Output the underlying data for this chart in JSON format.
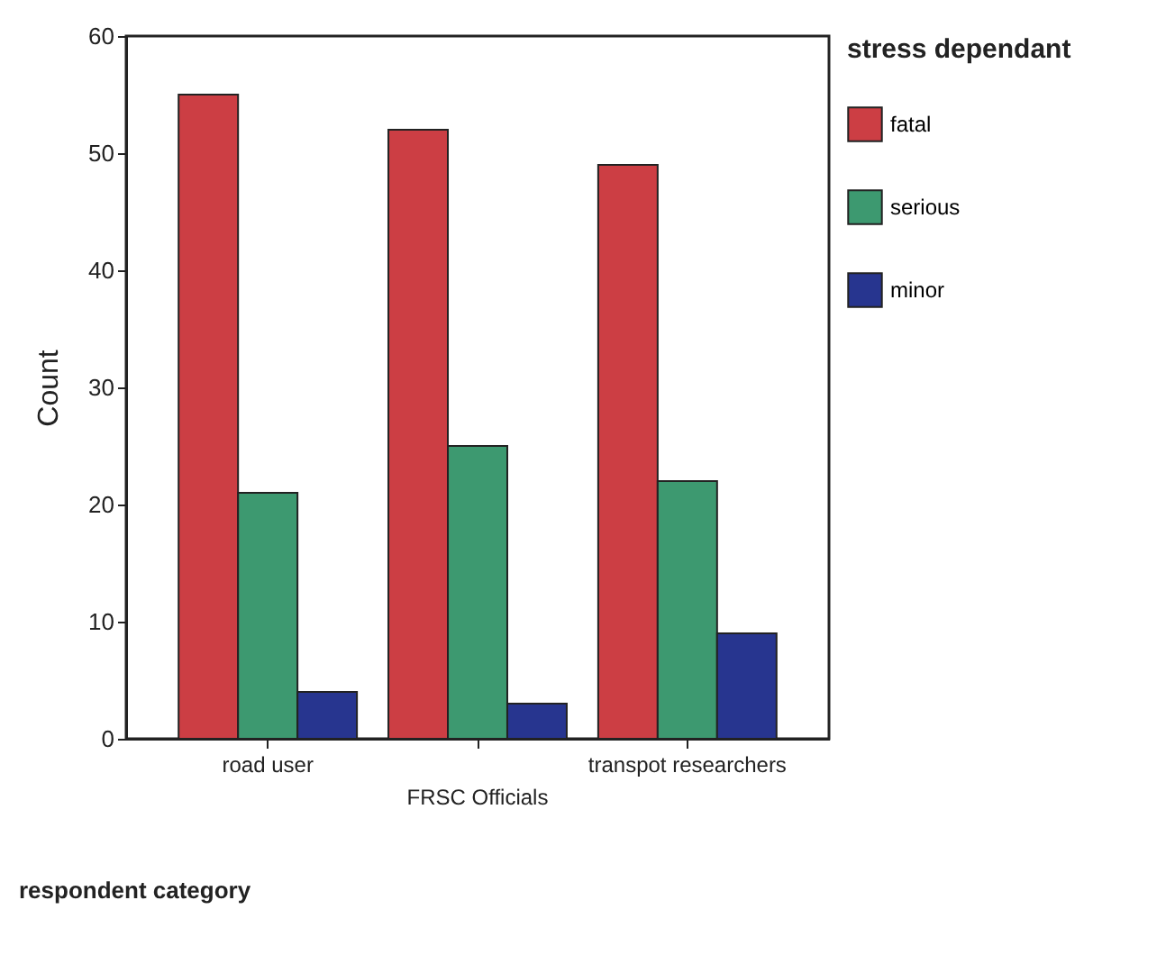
{
  "chart_data": {
    "type": "bar",
    "xlabel": "respondent category",
    "ylabel": "Count",
    "legend_title": "stress dependant",
    "categories": [
      "road user",
      "FRSC Officials",
      "transpot researchers"
    ],
    "series": [
      {
        "name": "fatal",
        "color": "#cc3e44",
        "values": [
          55,
          52,
          49
        ]
      },
      {
        "name": "serious",
        "color": "#3d9970",
        "values": [
          21,
          25,
          22
        ]
      },
      {
        "name": "minor",
        "color": "#27358f",
        "values": [
          4,
          3,
          9
        ]
      }
    ],
    "ylim": [
      0,
      60
    ],
    "yticks": [
      0,
      10,
      20,
      30,
      40,
      50,
      60
    ],
    "grid": false,
    "legend": "right"
  }
}
